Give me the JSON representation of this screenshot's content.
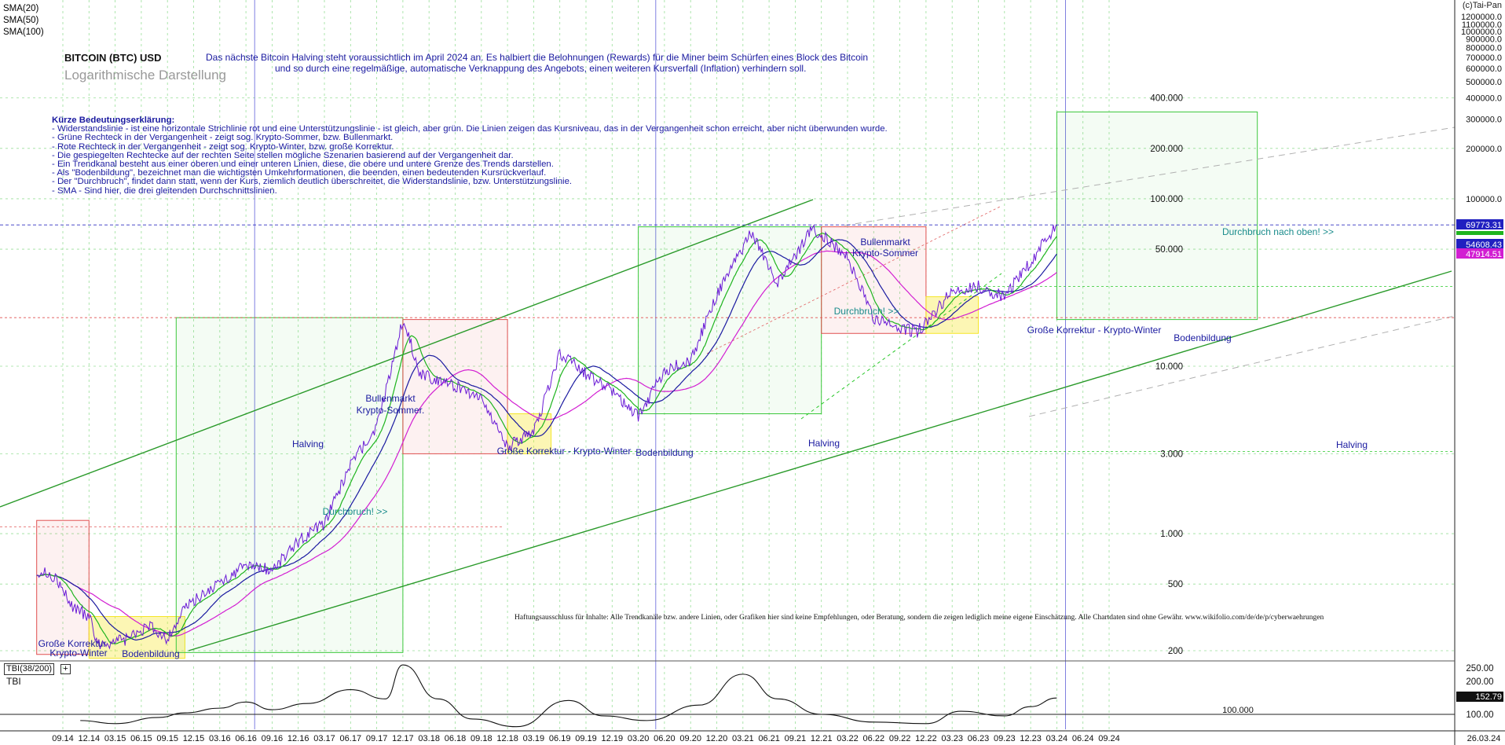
{
  "header": {
    "title": "BITCOIN (BTC) USD",
    "subtitle": "Logarithmische Darstellung",
    "copyright": "(c)Tai-Pan",
    "sma_labels": [
      {
        "text": "SMA(20)",
        "color": "#1eb41e"
      },
      {
        "text": "SMA(50)",
        "color": "#1a1aa0"
      },
      {
        "text": "SMA(100)",
        "color": "#d21ed2"
      }
    ],
    "halving_note_line1": "Das nächste Bitcoin Halving steht voraussichtlich im April 2024 an. Es halbiert die Belohnungen (Rewards) für die Miner beim Schürfen eines Block des Bitcoin",
    "halving_note_line2": "und so durch eine regelmäßige, automatische Verknappung des Angebots, einen weiteren Kursverfall (Inflation) verhindern soll."
  },
  "explanation": {
    "heading": "Kürze Bedeutungserklärung:",
    "lines": [
      "- Widerstandslinie - ist eine horizontale Strichlinie rot und eine Unterstützungslinie - ist gleich, aber grün. Die Linien zeigen das Kursniveau, das in der Vergangenheit schon erreicht, aber nicht überwunden wurde.",
      "- Grüne Rechteck in der Vergangenheit - zeigt sog. Krypto-Sommer, bzw. Bullenmarkt.",
      "- Rote Rechteck in der Vergangenheit - zeigt sog. Krypto-Winter, bzw. große Korrektur.",
      "- Die gespiegelten Rechtecke auf der rechten Seite stellen mögliche Szenarien basierend auf der Vergangenheit dar.",
      "- Ein Trendkanal besteht aus einer oberen und einer unteren Linien, diese, die obere und untere Grenze des Trends darstellen.",
      "- Als \"Bodenbildung\", bezeichnet man die wichtigsten Umkehrformationen, die beenden, einen bedeutenden Kursrückverlauf.",
      "- Der \"Durchbruch\", findet dann statt, wenn der Kurs, ziemlich deutlich überschreitet, die Widerstandslinie, bzw. Unterstützungslinie.",
      "- SMA - Sind hier, die drei gleitenden Durchschnittslinien."
    ]
  },
  "disclaimer": "Haftungsausschluss für Inhalte: Alle Trendkanäle bzw. andere Linien, oder Grafiken hier sind keine Empfehlungen, oder Beratung, sondern die zeigen lediglich meine eigene Einschätzung. Alle Chartdaten sind ohne Gewähr.  www.wikifolio.com/de/de/p/cyberwaehrungen",
  "colors": {
    "price": "#6a1ad6",
    "sma20": "#1eb41e",
    "sma50": "#1a1aa0",
    "sma100": "#d21ed2",
    "bull_rect": "#3cc83c",
    "bear_rect": "#e05050",
    "bottom_rect": "#f5e628",
    "annotation": "#1a1aa0",
    "breakout": "#1a8c8c"
  },
  "chart_data": [
    {
      "type": "line",
      "title": "BITCOIN (BTC) USD",
      "scale": "log",
      "ylim": [
        150,
        1500000
      ],
      "grid": true,
      "y_ticks_right": [
        "1200000.0",
        "1100000.0",
        "1000000.0",
        "900000.0",
        "800000.0",
        "700000.0",
        "600000.0",
        "500000.0",
        "400000.0",
        "300000.0",
        "200000.0",
        "100000.0"
      ],
      "y_value_ticks": [
        {
          "value": 1100000,
          "label": "1100000.0"
        },
        {
          "value": 1000000,
          "label": "1000000.0"
        },
        {
          "value": 900000,
          "label": "900000.0"
        },
        {
          "value": 800000,
          "label": "800000.0"
        },
        {
          "value": 700000,
          "label": "700000.0"
        },
        {
          "value": 600000,
          "label": "600000.0"
        },
        {
          "value": 500000,
          "label": "500000.0"
        },
        {
          "value": 400000,
          "label": "400000.0"
        },
        {
          "value": 300000,
          "label": "300000.0"
        },
        {
          "value": 200000,
          "label": "200000.0"
        },
        {
          "value": 100000,
          "label": "100000.0"
        }
      ],
      "y_ticks_inside": [
        {
          "value": 400000,
          "label": "400.000"
        },
        {
          "value": 200000,
          "label": "200.000"
        },
        {
          "value": 100000,
          "label": "100.000"
        },
        {
          "value": 50000,
          "label": "50.000"
        },
        {
          "value": 10000,
          "label": "10.000"
        },
        {
          "value": 3000,
          "label": "3.000"
        },
        {
          "value": 1000,
          "label": "1.000"
        },
        {
          "value": 500,
          "label": "500"
        },
        {
          "value": 200,
          "label": "200"
        }
      ],
      "x_ticks": [
        "09.14",
        "12.14",
        "03.15",
        "06.15",
        "09.15",
        "12.15",
        "03.16",
        "06.16",
        "09.16",
        "12.16",
        "03.17",
        "06.17",
        "09.17",
        "12.17",
        "03.18",
        "06.18",
        "09.18",
        "12.18",
        "03.19",
        "06.19",
        "09.19",
        "12.19",
        "03.20",
        "06.20",
        "09.20",
        "12.20",
        "03.21",
        "06.21",
        "09.21",
        "12.21",
        "03.22",
        "06.22",
        "09.22",
        "12.22",
        "03.23",
        "06.23",
        "09.23",
        "12.23",
        "03.24",
        "06.24",
        "09.24"
      ],
      "x_end_label": "26.03.24",
      "series": [
        {
          "name": "SMA(20)",
          "color": "#1eb41e"
        },
        {
          "name": "SMA(50)",
          "color": "#1a1aa0"
        },
        {
          "name": "SMA(100)",
          "color": "#d21ed2"
        }
      ],
      "price_points": [
        {
          "t": "2014-06",
          "v": 600
        },
        {
          "t": "2014-08",
          "v": 560
        },
        {
          "t": "2014-10",
          "v": 370
        },
        {
          "t": "2014-12",
          "v": 320
        },
        {
          "t": "2015-01",
          "v": 220
        },
        {
          "t": "2015-04",
          "v": 230
        },
        {
          "t": "2015-07",
          "v": 280
        },
        {
          "t": "2015-09",
          "v": 235
        },
        {
          "t": "2015-11",
          "v": 360
        },
        {
          "t": "2016-01",
          "v": 430
        },
        {
          "t": "2016-06",
          "v": 650
        },
        {
          "t": "2016-09",
          "v": 610
        },
        {
          "t": "2016-12",
          "v": 900
        },
        {
          "t": "2017-03",
          "v": 1150
        },
        {
          "t": "2017-06",
          "v": 2600
        },
        {
          "t": "2017-09",
          "v": 4300
        },
        {
          "t": "2017-12",
          "v": 19000
        },
        {
          "t": "2018-02",
          "v": 9000
        },
        {
          "t": "2018-05",
          "v": 8000
        },
        {
          "t": "2018-09",
          "v": 6500
        },
        {
          "t": "2018-12",
          "v": 3300
        },
        {
          "t": "2019-03",
          "v": 4000
        },
        {
          "t": "2019-06",
          "v": 12000
        },
        {
          "t": "2019-09",
          "v": 9000
        },
        {
          "t": "2019-12",
          "v": 7200
        },
        {
          "t": "2020-03",
          "v": 5000
        },
        {
          "t": "2020-06",
          "v": 9400
        },
        {
          "t": "2020-09",
          "v": 10800
        },
        {
          "t": "2020-12",
          "v": 27000
        },
        {
          "t": "2021-04",
          "v": 63000
        },
        {
          "t": "2021-07",
          "v": 31000
        },
        {
          "t": "2021-11",
          "v": 67000
        },
        {
          "t": "2022-03",
          "v": 45000
        },
        {
          "t": "2022-06",
          "v": 19000
        },
        {
          "t": "2022-11",
          "v": 16000
        },
        {
          "t": "2023-03",
          "v": 28000
        },
        {
          "t": "2023-06",
          "v": 30000
        },
        {
          "t": "2023-09",
          "v": 26000
        },
        {
          "t": "2023-12",
          "v": 42000
        },
        {
          "t": "2024-03",
          "v": 69773
        }
      ],
      "price_labels": [
        {
          "value": 69773.31,
          "label": "69773.31"
        },
        {
          "value": 54608.43,
          "label": "54608.43"
        },
        {
          "value": 47914.51,
          "label": "47914.51"
        }
      ],
      "annotations": [
        "Große Korrektur",
        "Krypto-Winter",
        "Bodenbildung",
        "Bullenmarkt",
        "Krypto-Sommer.",
        "Halving",
        "Durchbruch! >>",
        "Große Korrektur - Krypto-Winter",
        "Bodenbildung",
        "Halving",
        "Bullenmarkt",
        "Krypto-Sommer",
        "Durchbruch! >>",
        "Große Korrektur - Krypto-Winter",
        "Bodenbildung",
        "Durchbruch nach oben! >>",
        "Halving"
      ]
    },
    {
      "type": "line",
      "title": "TBI(38/200)",
      "name": "TBI",
      "y_ticks": [
        "250.00",
        "200.00",
        "100.00"
      ],
      "reference": {
        "value": 100,
        "label": "100.000"
      },
      "last_value": {
        "value": 152.79,
        "label": "152.79"
      },
      "points": [
        {
          "t": "2014-11",
          "v": 80
        },
        {
          "t": "2015-03",
          "v": 70
        },
        {
          "t": "2015-08",
          "v": 90
        },
        {
          "t": "2015-11",
          "v": 105
        },
        {
          "t": "2016-03",
          "v": 120
        },
        {
          "t": "2016-06",
          "v": 140
        },
        {
          "t": "2016-09",
          "v": 115
        },
        {
          "t": "2017-01",
          "v": 135
        },
        {
          "t": "2017-06",
          "v": 180
        },
        {
          "t": "2017-10",
          "v": 150
        },
        {
          "t": "2017-12",
          "v": 260
        },
        {
          "t": "2018-04",
          "v": 150
        },
        {
          "t": "2018-08",
          "v": 85
        },
        {
          "t": "2019-01",
          "v": 60
        },
        {
          "t": "2019-07",
          "v": 145
        },
        {
          "t": "2019-11",
          "v": 95
        },
        {
          "t": "2020-04",
          "v": 80
        },
        {
          "t": "2020-10",
          "v": 130
        },
        {
          "t": "2021-03",
          "v": 230
        },
        {
          "t": "2021-07",
          "v": 150
        },
        {
          "t": "2021-12",
          "v": 100
        },
        {
          "t": "2022-06",
          "v": 75
        },
        {
          "t": "2022-12",
          "v": 70
        },
        {
          "t": "2023-04",
          "v": 110
        },
        {
          "t": "2023-09",
          "v": 95
        },
        {
          "t": "2023-12",
          "v": 125
        },
        {
          "t": "2024-03",
          "v": 152.79
        }
      ]
    }
  ]
}
